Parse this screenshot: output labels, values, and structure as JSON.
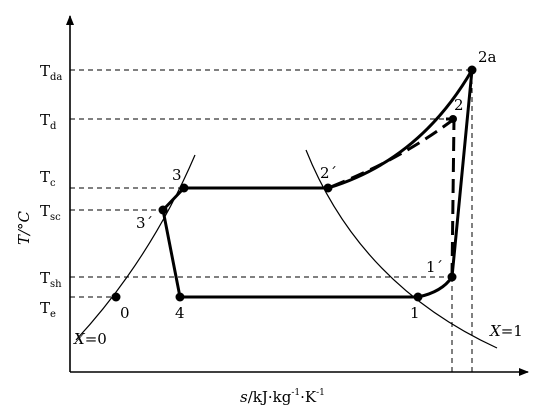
{
  "axes": {
    "y_label": "T/°C",
    "x_label_parts": [
      "s",
      "/kJ·kg",
      "-1",
      "·K",
      "-1"
    ]
  },
  "temperature_levels": [
    {
      "base": "T",
      "sub": "da"
    },
    {
      "base": "T",
      "sub": "d"
    },
    {
      "base": "T",
      "sub": "c"
    },
    {
      "base": "T",
      "sub": "sc"
    },
    {
      "base": "T",
      "sub": "sh"
    },
    {
      "base": "T",
      "sub": "e"
    }
  ],
  "state_points": {
    "p0": "0",
    "p1": "1",
    "p1p": "1´",
    "p2": "2",
    "p2p": "2´",
    "p2a": "2a",
    "p3": "3",
    "p3p": "3´",
    "p4": "4"
  },
  "quality_lines": {
    "x0": {
      "var": "X",
      "val": "=0"
    },
    "x1": {
      "var": "X",
      "val": "=1"
    }
  }
}
